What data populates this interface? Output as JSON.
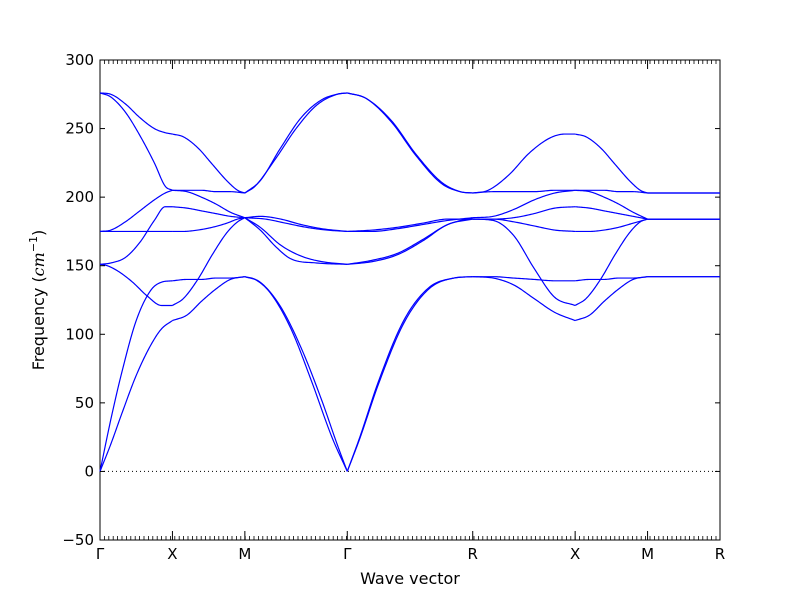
{
  "chart_data": {
    "type": "line",
    "title": "",
    "xlabel": "Wave vector",
    "ylabel": {
      "prefix": "Frequency (",
      "unit": "cm",
      "exponent": "−1",
      "suffix": ")"
    },
    "ylim": [
      -50,
      300
    ],
    "yticks": [
      -50,
      0,
      50,
      100,
      150,
      200,
      250,
      300
    ],
    "ytick_labels": [
      "−50",
      "0",
      "50",
      "100",
      "150",
      "200",
      "250",
      "300"
    ],
    "grid": false,
    "zero_line": true,
    "line_color": "#0000ff",
    "xticks": [
      {
        "pos": 0.0,
        "label": "Γ"
      },
      {
        "pos": 1.0,
        "label": "X"
      },
      {
        "pos": 2.0,
        "label": "M"
      },
      {
        "pos": 3.414,
        "label": "Γ"
      },
      {
        "pos": 5.146,
        "label": "R"
      },
      {
        "pos": 6.56,
        "label": "X"
      },
      {
        "pos": 7.56,
        "label": "M"
      },
      {
        "pos": 8.56,
        "label": "R"
      }
    ],
    "segments": [
      {
        "from": "Γ",
        "to": "X",
        "x_start": 0.0,
        "x_end": 1.0,
        "branches": [
          {
            "t": [
              0,
              0.15,
              0.3,
              0.5,
              0.7,
              0.85,
              1.0
            ],
            "y": [
              0,
              20,
              42,
              70,
              92,
              104,
              110
            ]
          },
          {
            "t": [
              0,
              0.15,
              0.3,
              0.5,
              0.7,
              0.85,
              1.0
            ],
            "y": [
              0,
              38,
              72,
              110,
              132,
              138,
              139
            ]
          },
          {
            "t": [
              0,
              0.1,
              0.25,
              0.45,
              0.65,
              0.85,
              1.0
            ],
            "y": [
              151,
              150,
              146,
              138,
              128,
              121,
              121
            ]
          },
          {
            "t": [
              0,
              0.15,
              0.35,
              0.55,
              0.75,
              0.9,
              1.0
            ],
            "y": [
              151,
              152,
              156,
              167,
              183,
              193,
              193
            ]
          },
          {
            "t": [
              0,
              0.2,
              0.4,
              0.6,
              0.8,
              1.0
            ],
            "y": [
              175,
              175,
              175,
              175,
              175,
              175
            ]
          },
          {
            "t": [
              0,
              0.15,
              0.35,
              0.55,
              0.75,
              0.9,
              1.0
            ],
            "y": [
              175,
              176,
              182,
              190,
              198,
              203,
              205
            ]
          },
          {
            "t": [
              0,
              0.15,
              0.35,
              0.55,
              0.75,
              0.9,
              1.0
            ],
            "y": [
              276,
              273,
              262,
              245,
              225,
              208,
              205
            ]
          },
          {
            "t": [
              0,
              0.15,
              0.35,
              0.55,
              0.75,
              0.9,
              1.0
            ],
            "y": [
              276,
              275,
              268,
              258,
              250,
              247,
              246
            ]
          }
        ]
      },
      {
        "from": "X",
        "to": "M",
        "x_start": 1.0,
        "x_end": 2.0,
        "branches": [
          {
            "t": [
              0,
              0.2,
              0.4,
              0.6,
              0.8,
              1.0
            ],
            "y": [
              110,
              114,
              124,
              133,
              140,
              142
            ]
          },
          {
            "t": [
              0,
              0.2,
              0.4,
              0.6,
              0.8,
              1.0
            ],
            "y": [
              139,
              140,
              140,
              141,
              141,
              142
            ]
          },
          {
            "t": [
              0,
              0.15,
              0.35,
              0.55,
              0.75,
              0.9,
              1.0
            ],
            "y": [
              121,
              126,
              140,
              158,
              174,
              182,
              185
            ]
          },
          {
            "t": [
              0,
              0.2,
              0.4,
              0.6,
              0.8,
              1.0
            ],
            "y": [
              193,
              192,
              190,
              188,
              186,
              185
            ]
          },
          {
            "t": [
              0,
              0.15,
              0.35,
              0.55,
              0.75,
              0.9,
              1.0
            ],
            "y": [
              175,
              175,
              176,
              178,
              181,
              184,
              185
            ]
          },
          {
            "t": [
              0,
              0.2,
              0.4,
              0.6,
              0.8,
              1.0
            ],
            "y": [
              205,
              204,
              200,
              195,
              189,
              185
            ]
          },
          {
            "t": [
              0,
              0.2,
              0.4,
              0.6,
              0.8,
              1.0
            ],
            "y": [
              205,
              205,
              205,
              204,
              204,
              203
            ]
          },
          {
            "t": [
              0,
              0.15,
              0.35,
              0.55,
              0.75,
              0.9,
              1.0
            ],
            "y": [
              246,
              244,
              236,
              224,
              212,
              205,
              203
            ]
          }
        ]
      },
      {
        "from": "M",
        "to": "Γ",
        "x_start": 2.0,
        "x_end": 3.414,
        "branches": [
          {
            "t": [
              0,
              0.15,
              0.35,
              0.55,
              0.75,
              0.9,
              1.0
            ],
            "y": [
              142,
              138,
              120,
              90,
              52,
              20,
              0
            ]
          },
          {
            "t": [
              0,
              0.1,
              0.25,
              0.45,
              0.65,
              0.85,
              1.0
            ],
            "y": [
              142,
              140,
              130,
              104,
              66,
              25,
              0
            ]
          },
          {
            "t": [
              0,
              0.15,
              0.35,
              0.55,
              0.75,
              1.0
            ],
            "y": [
              185,
              178,
              165,
              157,
              153,
              151
            ]
          },
          {
            "t": [
              0,
              0.15,
              0.3,
              0.45,
              0.7,
              1.0
            ],
            "y": [
              185,
              176,
              164,
              155,
              152,
              151
            ]
          },
          {
            "t": [
              0,
              0.2,
              0.4,
              0.6,
              0.8,
              1.0
            ],
            "y": [
              185,
              184,
              181,
              178,
              176,
              175
            ]
          },
          {
            "t": [
              0,
              0.15,
              0.35,
              0.55,
              0.75,
              1.0
            ],
            "y": [
              185,
              186,
              184,
              180,
              177,
              175
            ]
          },
          {
            "t": [
              0,
              0.15,
              0.35,
              0.55,
              0.75,
              0.9,
              1.0
            ],
            "y": [
              203,
              212,
              236,
              258,
              271,
              275,
              276
            ]
          },
          {
            "t": [
              0,
              0.1,
              0.3,
              0.5,
              0.7,
              0.9,
              1.0
            ],
            "y": [
              203,
              208,
              228,
              250,
              267,
              275,
              276
            ]
          }
        ]
      },
      {
        "from": "Γ",
        "to": "R",
        "x_start": 3.414,
        "x_end": 5.146,
        "branches": [
          {
            "t": [
              0,
              0.1,
              0.25,
              0.45,
              0.65,
              0.85,
              1.0
            ],
            "y": [
              0,
              25,
              66,
              110,
              134,
              141,
              142
            ]
          },
          {
            "t": [
              0,
              0.1,
              0.25,
              0.45,
              0.65,
              0.85,
              1.0
            ],
            "y": [
              0,
              24,
              64,
              108,
              133,
              141,
              142
            ]
          },
          {
            "t": [
              0,
              0.2,
              0.4,
              0.6,
              0.8,
              1.0
            ],
            "y": [
              151,
              153,
              158,
              168,
              180,
              184
            ]
          },
          {
            "t": [
              0,
              0.2,
              0.4,
              0.6,
              0.8,
              1.0
            ],
            "y": [
              151,
              154,
              159,
              169,
              180,
              185
            ]
          },
          {
            "t": [
              0,
              0.2,
              0.4,
              0.6,
              0.8,
              1.0
            ],
            "y": [
              175,
              176,
              178,
              181,
              184,
              184
            ]
          },
          {
            "t": [
              0,
              0.2,
              0.4,
              0.6,
              0.8,
              1.0
            ],
            "y": [
              175,
              175,
              177,
              180,
              183,
              185
            ]
          },
          {
            "t": [
              0,
              0.15,
              0.35,
              0.55,
              0.75,
              0.9,
              1.0
            ],
            "y": [
              276,
              272,
              255,
              230,
              210,
              204,
              203
            ]
          },
          {
            "t": [
              0,
              0.15,
              0.35,
              0.55,
              0.75,
              0.9,
              1.0
            ],
            "y": [
              276,
              272,
              256,
              231,
              211,
              204,
              203
            ]
          }
        ]
      },
      {
        "from": "R",
        "to": "X",
        "x_start": 5.146,
        "x_end": 6.56,
        "branches": [
          {
            "t": [
              0,
              0.2,
              0.4,
              0.6,
              0.8,
              1.0
            ],
            "y": [
              142,
              141,
              136,
              126,
              116,
              110
            ]
          },
          {
            "t": [
              0,
              0.2,
              0.4,
              0.6,
              0.8,
              1.0
            ],
            "y": [
              142,
              142,
              141,
              140,
              139,
              139
            ]
          },
          {
            "t": [
              0,
              0.2,
              0.4,
              0.6,
              0.8,
              1.0
            ],
            "y": [
              184,
              183,
              172,
              148,
              127,
              121
            ]
          },
          {
            "t": [
              0,
              0.2,
              0.4,
              0.6,
              0.8,
              1.0
            ],
            "y": [
              184,
              184,
              185,
              188,
              192,
              193
            ]
          },
          {
            "t": [
              0,
              0.2,
              0.4,
              0.6,
              0.8,
              1.0
            ],
            "y": [
              184,
              184,
              182,
              179,
              176,
              175
            ]
          },
          {
            "t": [
              0,
              0.2,
              0.4,
              0.6,
              0.8,
              1.0
            ],
            "y": [
              185,
              186,
              191,
              198,
              203,
              205
            ]
          },
          {
            "t": [
              0,
              0.2,
              0.4,
              0.6,
              0.8,
              1.0
            ],
            "y": [
              203,
              204,
              204,
              204,
              205,
              205
            ]
          },
          {
            "t": [
              0,
              0.15,
              0.35,
              0.55,
              0.75,
              0.9,
              1.0
            ],
            "y": [
              203,
              205,
              216,
              232,
              243,
              246,
              246
            ]
          }
        ]
      },
      {
        "from": "X",
        "to": "M",
        "x_start": 6.56,
        "x_end": 7.56,
        "branches": [
          {
            "t": [
              0,
              0.2,
              0.4,
              0.6,
              0.8,
              1.0
            ],
            "y": [
              110,
              114,
              124,
              133,
              140,
              142
            ]
          },
          {
            "t": [
              0,
              0.2,
              0.4,
              0.6,
              0.8,
              1.0
            ],
            "y": [
              139,
              140,
              140,
              141,
              141,
              142
            ]
          },
          {
            "t": [
              0,
              0.15,
              0.35,
              0.55,
              0.75,
              0.9,
              1.0
            ],
            "y": [
              121,
              126,
              140,
              158,
              174,
              182,
              184
            ]
          },
          {
            "t": [
              0,
              0.2,
              0.4,
              0.6,
              0.8,
              1.0
            ],
            "y": [
              193,
              192,
              190,
              188,
              186,
              184
            ]
          },
          {
            "t": [
              0,
              0.2,
              0.4,
              0.6,
              0.8,
              1.0
            ],
            "y": [
              175,
              175,
              176,
              178,
              181,
              184
            ]
          },
          {
            "t": [
              0,
              0.2,
              0.4,
              0.6,
              0.8,
              1.0
            ],
            "y": [
              205,
              204,
              200,
              195,
              189,
              184
            ]
          },
          {
            "t": [
              0,
              0.2,
              0.4,
              0.6,
              0.8,
              1.0
            ],
            "y": [
              205,
              205,
              205,
              204,
              204,
              203
            ]
          },
          {
            "t": [
              0,
              0.15,
              0.35,
              0.55,
              0.75,
              0.9,
              1.0
            ],
            "y": [
              246,
              244,
              236,
              224,
              212,
              205,
              203
            ]
          }
        ]
      },
      {
        "from": "M",
        "to": "R",
        "x_start": 7.56,
        "x_end": 8.56,
        "branches": [
          {
            "t": [
              0,
              1.0
            ],
            "y": [
              142,
              142
            ]
          },
          {
            "t": [
              0,
              1.0
            ],
            "y": [
              142,
              142
            ]
          },
          {
            "t": [
              0,
              1.0
            ],
            "y": [
              184,
              184
            ]
          },
          {
            "t": [
              0,
              1.0
            ],
            "y": [
              184,
              184
            ]
          },
          {
            "t": [
              0,
              1.0
            ],
            "y": [
              184,
              184
            ]
          },
          {
            "t": [
              0,
              1.0
            ],
            "y": [
              184,
              184
            ]
          },
          {
            "t": [
              0,
              1.0
            ],
            "y": [
              203,
              203
            ]
          },
          {
            "t": [
              0,
              1.0
            ],
            "y": [
              203,
              203
            ]
          }
        ]
      }
    ]
  }
}
